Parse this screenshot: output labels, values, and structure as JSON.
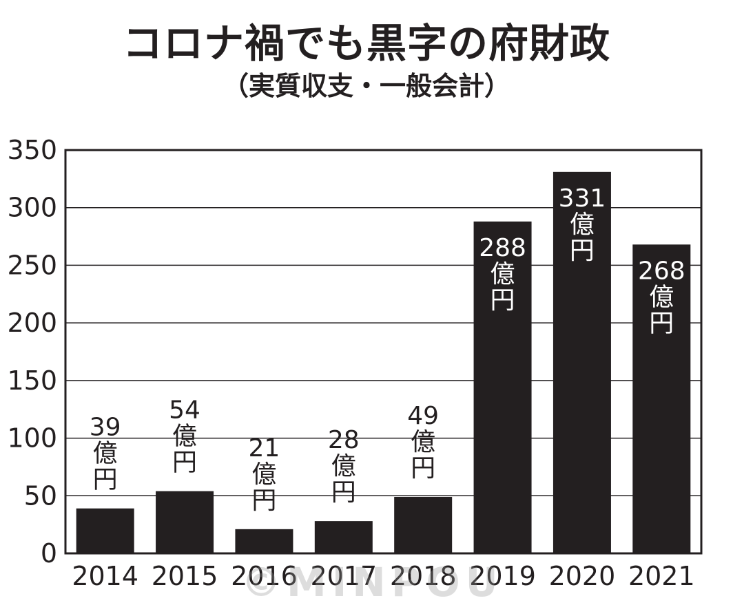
{
  "chart_data": {
    "type": "bar",
    "title": "コロナ禍でも黒字の府財政",
    "subtitle": "（実質収支・一般会計）",
    "categories": [
      "2014",
      "2015",
      "2016",
      "2017",
      "2018",
      "2019",
      "2020",
      "2021"
    ],
    "values": [
      39,
      54,
      21,
      28,
      49,
      288,
      331,
      268
    ],
    "data_labels": [
      "39",
      "54",
      "21",
      "28",
      "49",
      "288",
      "331",
      "268"
    ],
    "value_unit_chars": [
      "億",
      "円"
    ],
    "ylim": [
      0,
      350
    ],
    "yticks": [
      0,
      50,
      100,
      150,
      200,
      250,
      300,
      350
    ],
    "xlabel": "",
    "ylabel": "",
    "grid": true,
    "bar_color": "#231f20",
    "label_color_outside": "#231f20",
    "label_color_inside": "#ffffff"
  },
  "watermark": "©MINPOU"
}
